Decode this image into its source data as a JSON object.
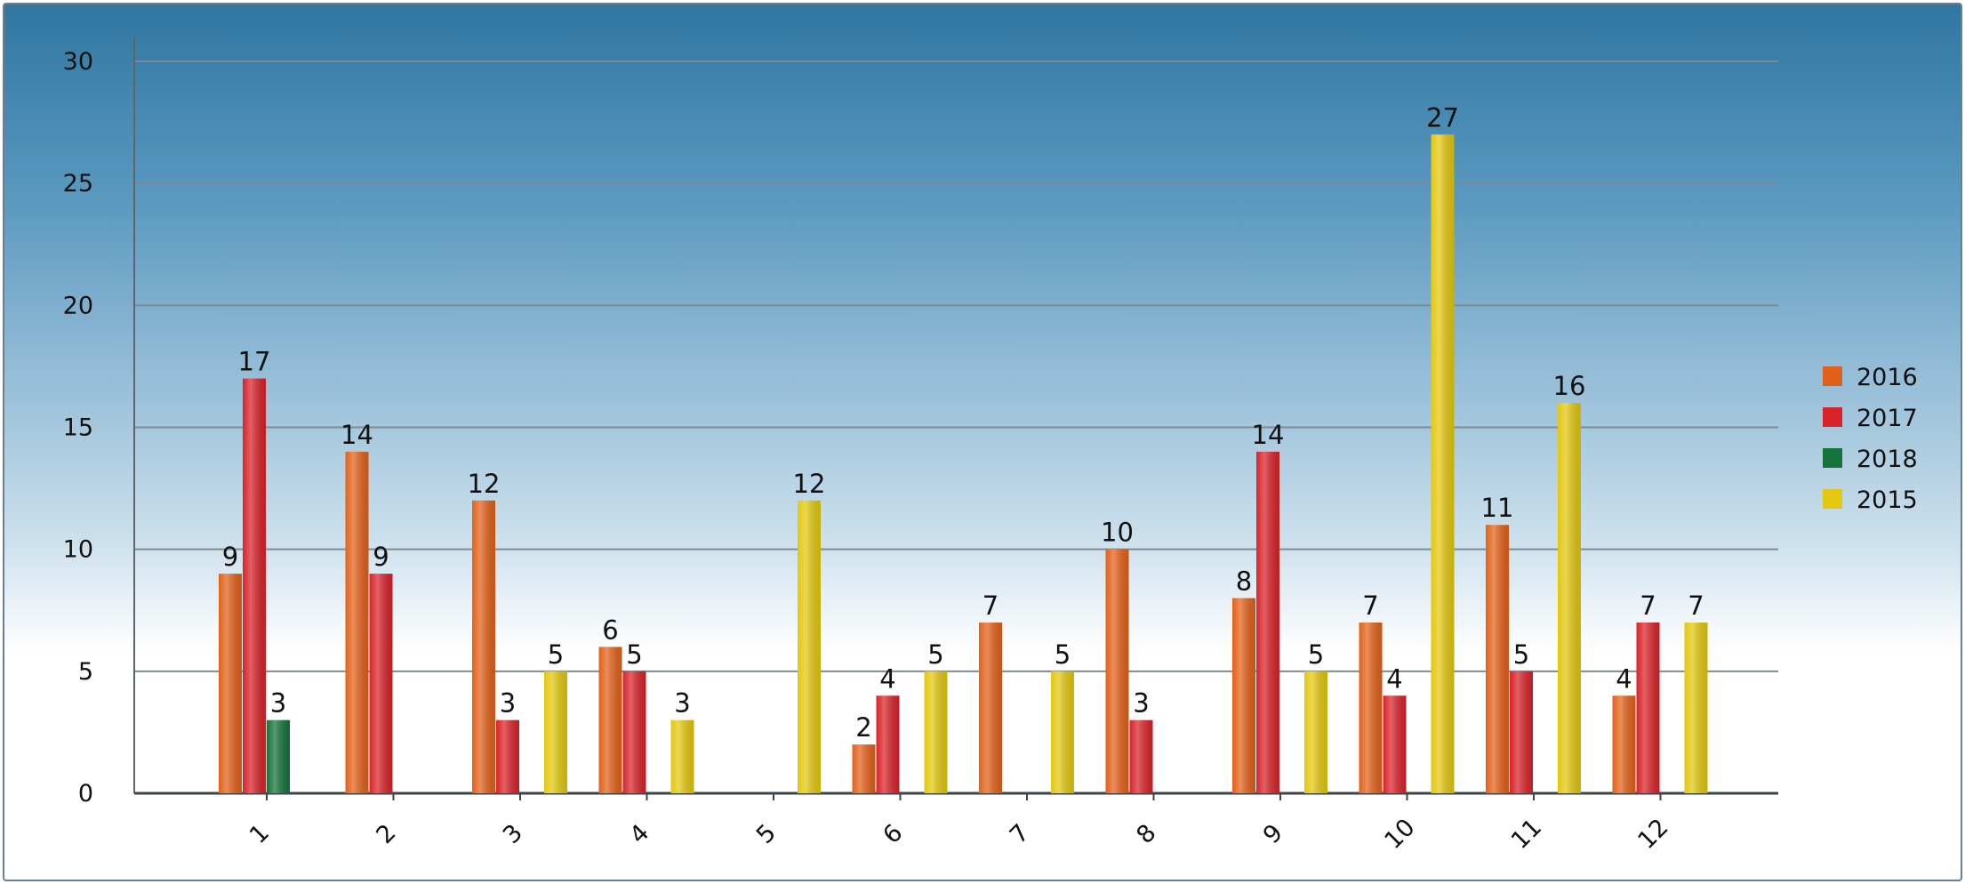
{
  "chart_data": {
    "type": "bar",
    "title": "",
    "xlabel": "",
    "ylabel": "",
    "categories": [
      "1",
      "2",
      "3",
      "4",
      "5",
      "6",
      "7",
      "8",
      "9",
      "10",
      "11",
      "12"
    ],
    "ylim": [
      0,
      30
    ],
    "yticks": [
      0,
      5,
      10,
      15,
      20,
      25,
      30
    ],
    "grid": true,
    "legend_position": "right",
    "series": [
      {
        "name": "2016",
        "color": "#e2611a",
        "values": [
          9,
          14,
          12,
          6,
          null,
          2,
          7,
          10,
          8,
          7,
          11,
          4
        ]
      },
      {
        "name": "2017",
        "color": "#d8232a",
        "values": [
          17,
          9,
          3,
          5,
          null,
          4,
          null,
          3,
          14,
          4,
          5,
          7
        ]
      },
      {
        "name": "2018",
        "color": "#137339",
        "values": [
          3,
          null,
          null,
          null,
          null,
          null,
          null,
          null,
          null,
          null,
          null,
          null
        ]
      },
      {
        "name": "2015",
        "color": "#e3c80f",
        "values": [
          null,
          null,
          5,
          3,
          12,
          5,
          5,
          null,
          5,
          27,
          16,
          7
        ]
      }
    ]
  }
}
